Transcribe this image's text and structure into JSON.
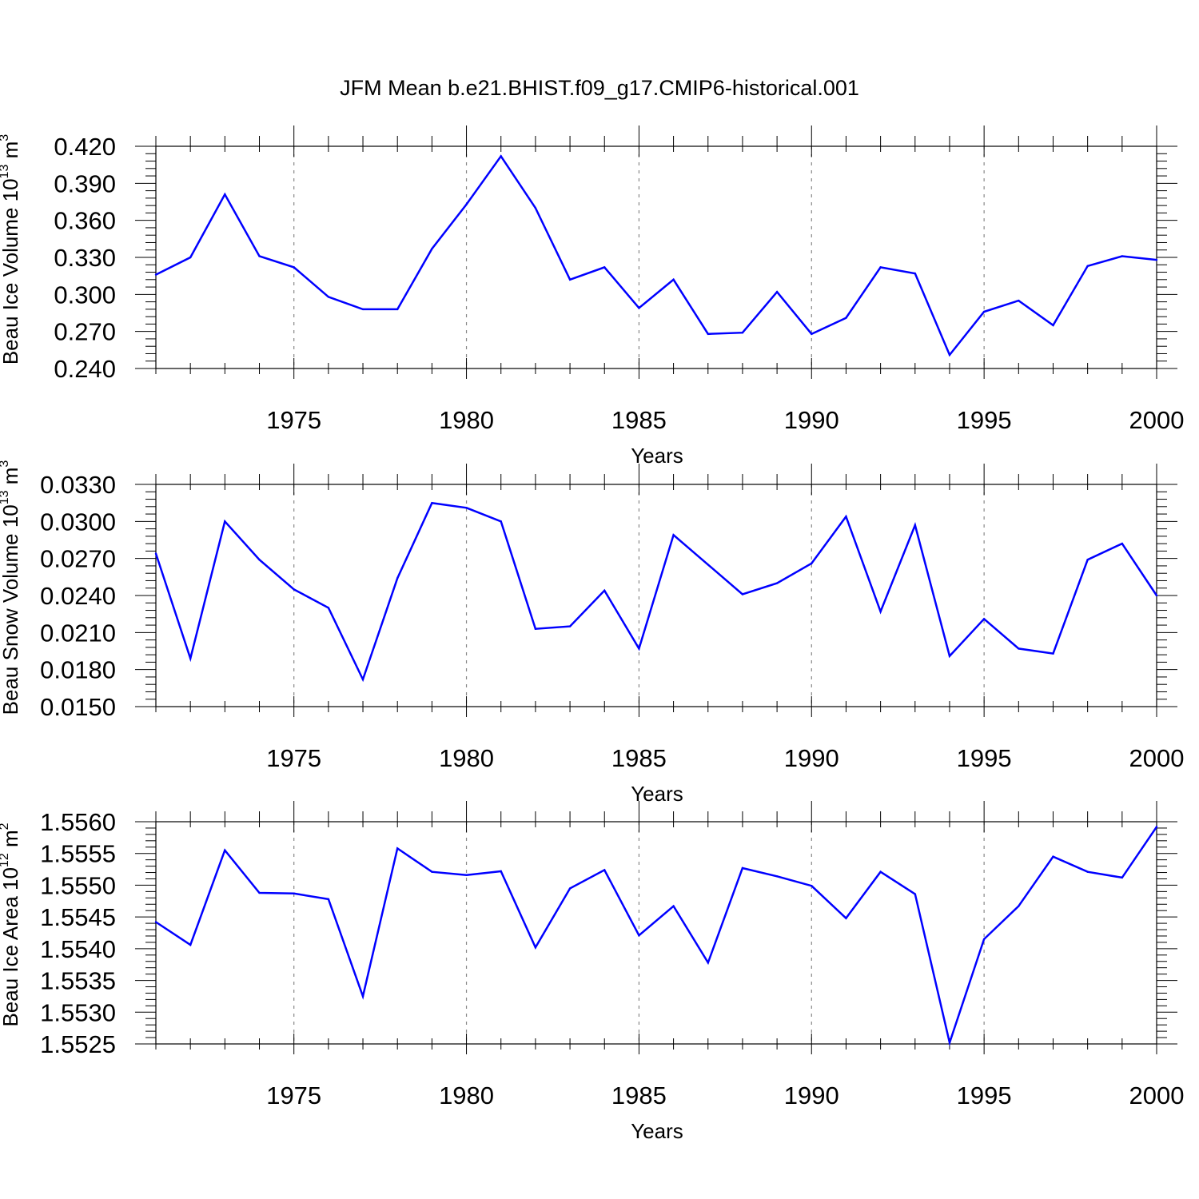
{
  "figure_title": "JFM Mean b.e21.BHIST.f09_g17.CMIP6-historical.001",
  "colors": {
    "line": "#0000ff",
    "axes": "#000000",
    "grid": "#888888",
    "background": "#ffffff"
  },
  "chart_data": [
    {
      "type": "line",
      "series_name": "Beau Ice Volume",
      "ylabel": {
        "text": "Beau Ice Volume 10",
        "exponent": "13",
        "unit": "m",
        "unit_exponent": "3"
      },
      "xlabel": "Years",
      "xlim": [
        1971,
        2000
      ],
      "ylim": [
        0.24,
        0.42
      ],
      "yticks": [
        0.24,
        0.27,
        0.3,
        0.33,
        0.36,
        0.39,
        0.42
      ],
      "ytick_labels": [
        "0.240",
        "0.270",
        "0.300",
        "0.330",
        "0.360",
        "0.390",
        "0.420"
      ],
      "xticks": [
        1975,
        1980,
        1985,
        1990,
        1995,
        2000
      ],
      "xtick_labels": [
        "1975",
        "1980",
        "1985",
        "1990",
        "1995",
        "2000"
      ],
      "x_gridlines": [
        1975,
        1980,
        1985,
        1990,
        1995
      ],
      "x": [
        1971,
        1972,
        1973,
        1974,
        1975,
        1976,
        1977,
        1978,
        1979,
        1980,
        1981,
        1982,
        1983,
        1984,
        1985,
        1986,
        1987,
        1988,
        1989,
        1990,
        1991,
        1992,
        1993,
        1994,
        1995,
        1996,
        1997,
        1998,
        1999,
        2000
      ],
      "values": [
        0.316,
        0.33,
        0.381,
        0.331,
        0.322,
        0.298,
        0.288,
        0.288,
        0.337,
        0.373,
        0.412,
        0.37,
        0.312,
        0.322,
        0.289,
        0.312,
        0.268,
        0.269,
        0.302,
        0.268,
        0.281,
        0.322,
        0.317,
        0.251,
        0.286,
        0.295,
        0.275,
        0.323,
        0.331,
        0.328
      ]
    },
    {
      "type": "line",
      "series_name": "Beau Snow Volume",
      "ylabel": {
        "text": "Beau Snow Volume 10",
        "exponent": "13",
        "unit": "m",
        "unit_exponent": "3"
      },
      "xlabel": "Years",
      "xlim": [
        1971,
        2000
      ],
      "ylim": [
        0.015,
        0.033
      ],
      "yticks": [
        0.015,
        0.018,
        0.021,
        0.024,
        0.027,
        0.03,
        0.033
      ],
      "ytick_labels": [
        "0.0150",
        "0.0180",
        "0.0210",
        "0.0240",
        "0.0270",
        "0.0300",
        "0.0330"
      ],
      "xticks": [
        1975,
        1980,
        1985,
        1990,
        1995,
        2000
      ],
      "xtick_labels": [
        "1975",
        "1980",
        "1985",
        "1990",
        "1995",
        "2000"
      ],
      "x_gridlines": [
        1975,
        1980,
        1985,
        1990,
        1995
      ],
      "x": [
        1971,
        1972,
        1973,
        1974,
        1975,
        1976,
        1977,
        1978,
        1979,
        1980,
        1981,
        1982,
        1983,
        1984,
        1985,
        1986,
        1987,
        1988,
        1989,
        1990,
        1991,
        1992,
        1993,
        1994,
        1995,
        1996,
        1997,
        1998,
        1999,
        2000
      ],
      "values": [
        0.0274,
        0.0189,
        0.03,
        0.0269,
        0.0245,
        0.023,
        0.0172,
        0.0254,
        0.0315,
        0.0311,
        0.03,
        0.0213,
        0.0215,
        0.0244,
        0.0197,
        0.0289,
        0.0265,
        0.0241,
        0.025,
        0.0266,
        0.0304,
        0.0227,
        0.0297,
        0.0191,
        0.0221,
        0.0197,
        0.0193,
        0.0269,
        0.0282,
        0.024
      ]
    },
    {
      "type": "line",
      "series_name": "Beau Ice Area",
      "ylabel": {
        "text": "Beau Ice Area 10",
        "exponent": "12",
        "unit": "m",
        "unit_exponent": "2"
      },
      "xlabel": "Years",
      "xlim": [
        1971,
        2000
      ],
      "ylim": [
        1.5525,
        1.556
      ],
      "yticks": [
        1.5525,
        1.553,
        1.5535,
        1.554,
        1.5545,
        1.555,
        1.5555,
        1.556
      ],
      "ytick_labels": [
        "1.5525",
        "1.5530",
        "1.5535",
        "1.5540",
        "1.5545",
        "1.5550",
        "1.5555",
        "1.5560"
      ],
      "xticks": [
        1975,
        1980,
        1985,
        1990,
        1995,
        2000
      ],
      "xtick_labels": [
        "1975",
        "1980",
        "1985",
        "1990",
        "1995",
        "2000"
      ],
      "x_gridlines": [
        1975,
        1980,
        1985,
        1990,
        1995
      ],
      "x": [
        1971,
        1972,
        1973,
        1974,
        1975,
        1976,
        1977,
        1978,
        1979,
        1980,
        1981,
        1982,
        1983,
        1984,
        1985,
        1986,
        1987,
        1988,
        1989,
        1990,
        1991,
        1992,
        1993,
        1994,
        1995,
        1996,
        1997,
        1998,
        1999,
        2000
      ],
      "values": [
        1.55442,
        1.55406,
        1.55555,
        1.55488,
        1.55487,
        1.55478,
        1.55325,
        1.55558,
        1.55521,
        1.55516,
        1.55522,
        1.55402,
        1.55495,
        1.55524,
        1.55421,
        1.55467,
        1.55378,
        1.55527,
        1.55514,
        1.55499,
        1.55448,
        1.55521,
        1.55486,
        1.55252,
        1.55415,
        1.55467,
        1.55545,
        1.55521,
        1.55512,
        1.55592
      ]
    }
  ]
}
